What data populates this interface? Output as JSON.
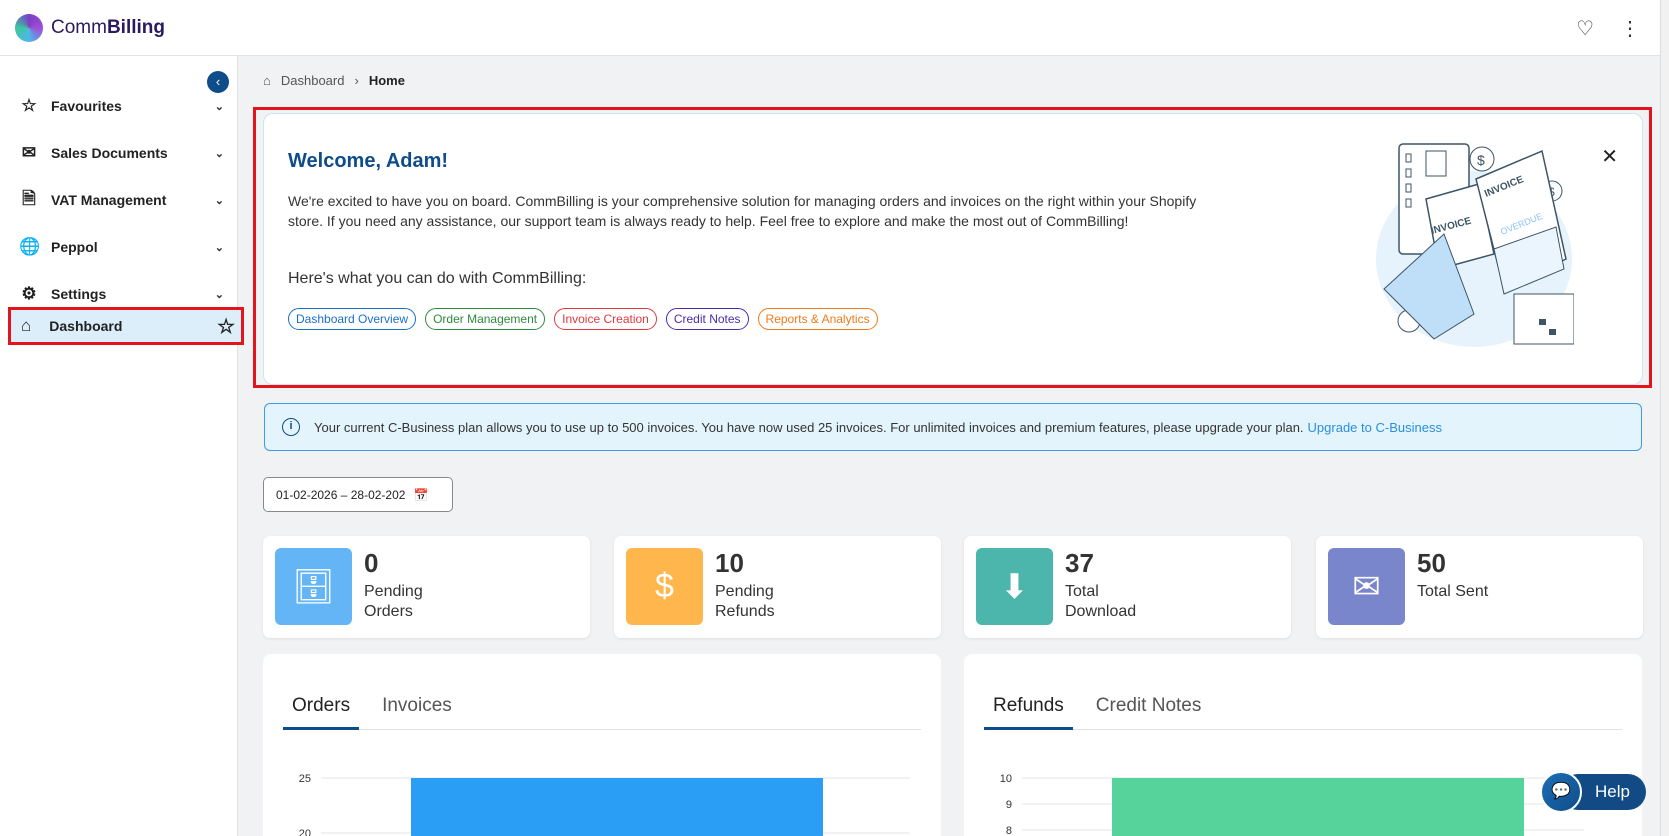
{
  "header": {
    "brand_light": "Comm",
    "brand_bold": "Billing",
    "icons": [
      "heart-icon",
      "more-vertical-icon"
    ]
  },
  "sidebar": {
    "items": [
      {
        "label": "Favourites",
        "icon": "☆"
      },
      {
        "label": "Sales Documents",
        "icon": "✉"
      },
      {
        "label": "VAT Management",
        "icon": "🗎"
      },
      {
        "label": "Peppol",
        "icon": "🌐"
      },
      {
        "label": "Settings",
        "icon": "⚙"
      }
    ],
    "active": {
      "label": "Dashboard",
      "icon": "⌂"
    }
  },
  "breadcrumb": {
    "parent": "Dashboard",
    "current": "Home"
  },
  "welcome": {
    "title": "Welcome, Adam!",
    "body": "We're excited to have you on board. CommBilling is your comprehensive solution for managing orders and invoices on the right within your Shopify store. If you need any assistance, our support team is always ready to help. Feel free to explore and make the most out of CommBilling!",
    "subtitle": "Here's what you can do with CommBilling:",
    "chips": [
      {
        "label": "Dashboard Overview",
        "color": "#1a6fc9"
      },
      {
        "label": "Order Management",
        "color": "#2e8b3e"
      },
      {
        "label": "Invoice Creation",
        "color": "#e0393e"
      },
      {
        "label": "Credit Notes",
        "color": "#4a2bb0"
      },
      {
        "label": "Reports & Analytics",
        "color": "#f07a1a"
      }
    ],
    "illustration_text": [
      "INVOICE",
      "INVOICE",
      "OVERDUE"
    ]
  },
  "banner": {
    "text": "Your current C-Business plan allows you to use up to 500 invoices. You have now used 25 invoices. For unlimited invoices and premium features, please upgrade your plan.",
    "link": "Upgrade to C-Business"
  },
  "date_range": "01-02-2026 – 28-02-202",
  "stats": [
    {
      "value": "0",
      "label": "Pending Orders",
      "color": "#64b5f6",
      "icon": "inbox-icon"
    },
    {
      "value": "10",
      "label": "Pending Refunds",
      "color": "#ffb74d",
      "icon": "dollar-bill-icon"
    },
    {
      "value": "37",
      "label": "Total Download",
      "color": "#4db6ac",
      "icon": "download-icon"
    },
    {
      "value": "50",
      "label": "Total Sent",
      "color": "#7986cb",
      "icon": "mail-check-icon"
    }
  ],
  "chart_data": [
    {
      "type": "bar",
      "tabs": [
        "Orders",
        "Invoices"
      ],
      "active_tab": "Orders",
      "yticks": [
        25,
        20
      ],
      "values": [
        25
      ],
      "color": "#2a9df4"
    },
    {
      "type": "bar",
      "tabs": [
        "Refunds",
        "Credit Notes"
      ],
      "active_tab": "Refunds",
      "yticks": [
        10,
        9,
        8
      ],
      "values": [
        10
      ],
      "color": "#56d39b"
    }
  ],
  "help": {
    "label": "Help"
  }
}
